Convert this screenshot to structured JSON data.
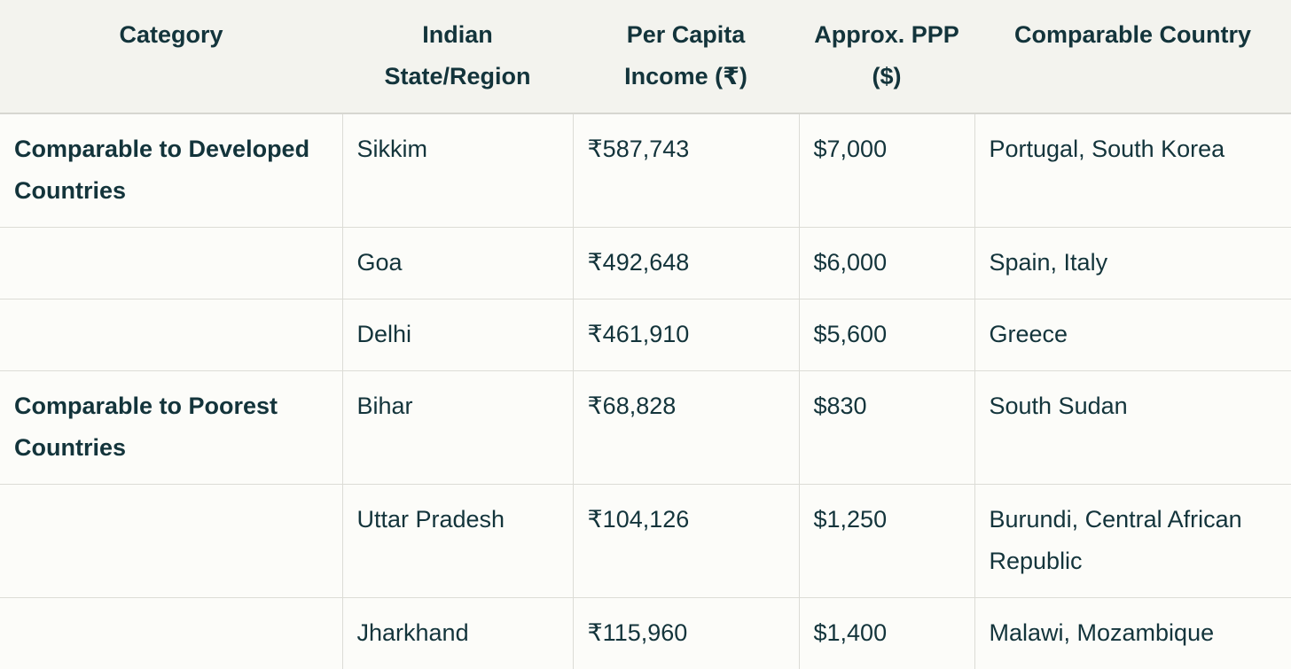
{
  "table": {
    "headers": [
      "Category",
      "Indian State/Region",
      "Per Capita Income (₹)",
      "Approx. PPP ($)",
      "Comparable Country"
    ],
    "rows": [
      {
        "category": "Comparable to Developed Countries",
        "state": "Sikkim",
        "income": "₹587,743",
        "ppp": "$7,000",
        "country": "Portugal, South Korea"
      },
      {
        "category": "",
        "state": "Goa",
        "income": "₹492,648",
        "ppp": "$6,000",
        "country": "Spain, Italy"
      },
      {
        "category": "",
        "state": "Delhi",
        "income": "₹461,910",
        "ppp": "$5,600",
        "country": "Greece"
      },
      {
        "category": "Comparable to Poorest Countries",
        "state": "Bihar",
        "income": "₹68,828",
        "ppp": "$830",
        "country": "South Sudan"
      },
      {
        "category": "",
        "state": "Uttar Pradesh",
        "income": "₹104,126",
        "ppp": "$1,250",
        "country": "Burundi, Central African Republic"
      },
      {
        "category": "",
        "state": "Jharkhand",
        "income": "₹115,960",
        "ppp": "$1,400",
        "country": "Malawi, Mozambique"
      }
    ]
  }
}
